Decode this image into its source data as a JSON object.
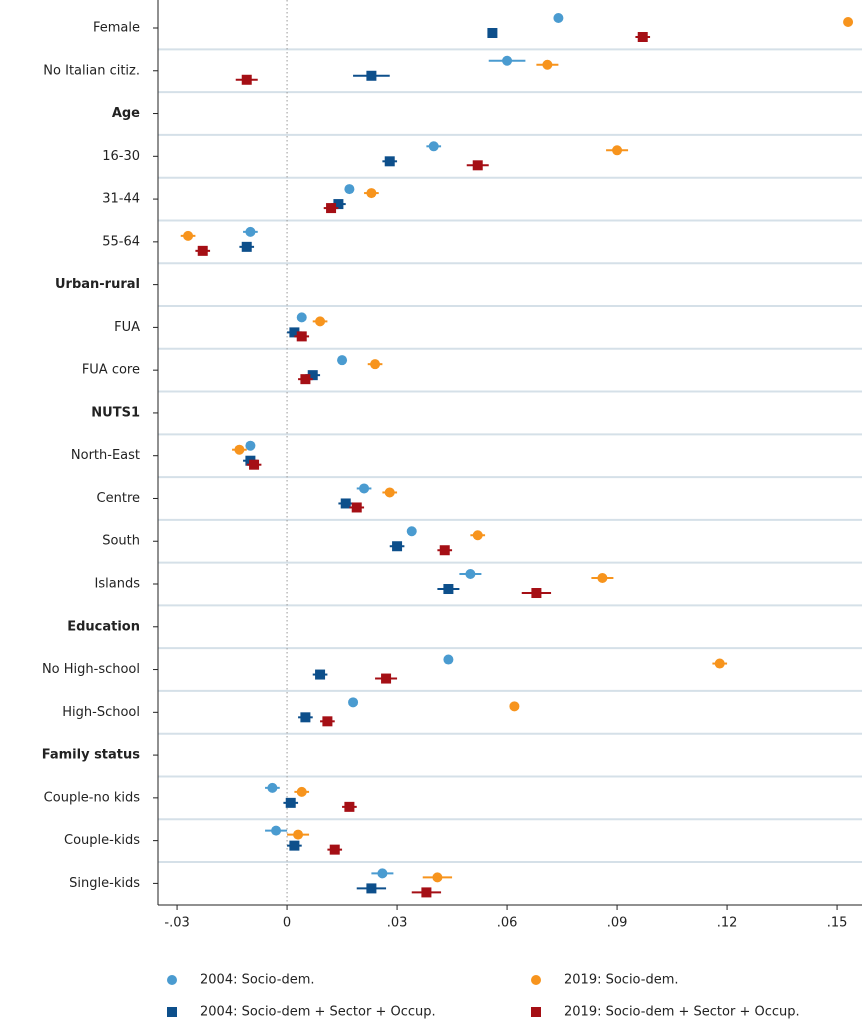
{
  "chart_data": {
    "type": "coefplot",
    "categories": [
      "Female",
      "No Italian citiz.",
      "Age",
      "16-30",
      "31-44",
      "55-64",
      "Urban-rural",
      "FUA",
      "FUA core",
      "NUTS1",
      "North-East",
      "Centre",
      "South",
      "Islands",
      "Education",
      "No High-school",
      "High-School",
      "Family status",
      "Couple-no kids",
      "Couple-kids",
      "Single-kids"
    ],
    "series": [
      {
        "name": "2004: Socio-dem.",
        "color": "#4a9bd0",
        "marker": "circle",
        "values": [
          0.074,
          0.06,
          null,
          0.04,
          0.017,
          -0.01,
          null,
          0.004,
          0.015,
          null,
          -0.01,
          0.021,
          0.034,
          0.05,
          null,
          0.044,
          0.018,
          null,
          -0.004,
          -0.003,
          0.026
        ],
        "errors": [
          0.001,
          0.005,
          null,
          0.002,
          0.001,
          0.002,
          null,
          0.001,
          0.001,
          null,
          0.001,
          0.002,
          0.001,
          0.003,
          null,
          0.001,
          0.001,
          null,
          0.002,
          0.003,
          0.003
        ]
      },
      {
        "name": "2019: Socio-dem.",
        "color": "#f7941d",
        "marker": "circle",
        "values": [
          0.153,
          0.071,
          null,
          0.09,
          0.023,
          -0.027,
          null,
          0.009,
          0.024,
          null,
          -0.013,
          0.028,
          0.052,
          0.086,
          null,
          0.118,
          0.062,
          null,
          0.004,
          0.003,
          0.041
        ],
        "errors": [
          0.001,
          0.003,
          null,
          0.003,
          0.002,
          0.002,
          null,
          0.002,
          0.002,
          null,
          0.002,
          0.002,
          0.002,
          0.003,
          null,
          0.002,
          0.001,
          null,
          0.002,
          0.003,
          0.004
        ]
      },
      {
        "name": "2004: Socio-dem + Sector + Occup.",
        "color": "#0d4f8b",
        "marker": "square",
        "values": [
          0.056,
          0.023,
          null,
          0.028,
          0.014,
          -0.011,
          null,
          0.002,
          0.007,
          null,
          -0.01,
          0.016,
          0.03,
          0.044,
          null,
          0.009,
          0.005,
          null,
          0.001,
          0.002,
          0.023
        ],
        "errors": [
          0.001,
          0.005,
          null,
          0.002,
          0.002,
          0.002,
          null,
          0.002,
          0.002,
          null,
          0.002,
          0.002,
          0.002,
          0.003,
          null,
          0.002,
          0.002,
          null,
          0.002,
          0.002,
          0.004
        ]
      },
      {
        "name": "2019: Socio-dem + Sector + Occup.",
        "color": "#a50f15",
        "marker": "square",
        "values": [
          0.097,
          -0.011,
          null,
          0.052,
          0.012,
          -0.023,
          null,
          0.004,
          0.005,
          null,
          -0.009,
          0.019,
          0.043,
          0.068,
          null,
          0.027,
          0.011,
          null,
          0.017,
          0.013,
          0.038
        ],
        "errors": [
          0.002,
          0.003,
          null,
          0.003,
          0.002,
          0.002,
          null,
          0.002,
          0.002,
          null,
          0.002,
          0.002,
          0.002,
          0.004,
          null,
          0.003,
          0.002,
          null,
          0.002,
          0.002,
          0.004
        ]
      }
    ],
    "xlim": [
      -0.0352,
      0.1568
    ],
    "xticks": [
      {
        "value": -0.03,
        "label": "-.03"
      },
      0,
      {
        "value": 0.03,
        "label": ".03"
      },
      {
        "value": 0.06,
        "label": ".06"
      },
      {
        "value": 0.09,
        "label": ".09"
      },
      {
        "value": 0.12,
        "label": ".12"
      },
      {
        "value": 0.15,
        "label": ".15"
      }
    ],
    "zero_line": true,
    "grid": true,
    "legend": "bottom"
  }
}
